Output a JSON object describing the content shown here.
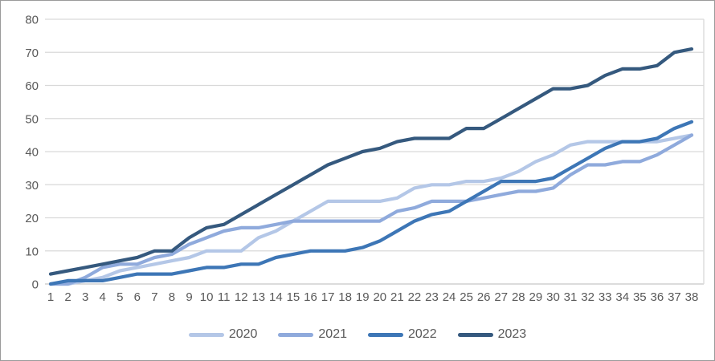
{
  "chart_data": {
    "type": "line",
    "title": "",
    "xlabel": "",
    "ylabel": "",
    "x": [
      1,
      2,
      3,
      4,
      5,
      6,
      7,
      8,
      9,
      10,
      11,
      12,
      13,
      14,
      15,
      16,
      17,
      18,
      19,
      20,
      21,
      22,
      23,
      24,
      25,
      26,
      27,
      28,
      29,
      30,
      31,
      32,
      33,
      34,
      35,
      36,
      37,
      38
    ],
    "series": [
      {
        "name": "2020",
        "color": "#b4c7e7",
        "values": [
          0,
          0,
          1,
          2,
          4,
          5,
          6,
          7,
          8,
          10,
          10,
          10,
          14,
          16,
          19,
          22,
          25,
          25,
          25,
          25,
          26,
          29,
          30,
          30,
          31,
          31,
          32,
          34,
          37,
          39,
          42,
          43,
          43,
          43,
          43,
          43,
          44,
          45
        ]
      },
      {
        "name": "2021",
        "color": "#8faadc",
        "values": [
          0,
          0,
          2,
          5,
          6,
          6,
          8,
          9,
          12,
          14,
          16,
          17,
          17,
          18,
          19,
          19,
          19,
          19,
          19,
          19,
          22,
          23,
          25,
          25,
          25,
          26,
          27,
          28,
          28,
          29,
          33,
          36,
          36,
          37,
          37,
          39,
          42,
          45
        ]
      },
      {
        "name": "2022",
        "color": "#3d76b6",
        "values": [
          0,
          1,
          1,
          1,
          2,
          3,
          3,
          3,
          4,
          5,
          5,
          6,
          6,
          8,
          9,
          10,
          10,
          10,
          11,
          13,
          16,
          19,
          21,
          22,
          25,
          28,
          31,
          31,
          31,
          32,
          35,
          38,
          41,
          43,
          43,
          44,
          47,
          49
        ]
      },
      {
        "name": "2023",
        "color": "#35597e",
        "values": [
          3,
          4,
          5,
          6,
          7,
          8,
          10,
          10,
          14,
          17,
          18,
          21,
          24,
          27,
          30,
          33,
          36,
          38,
          40,
          41,
          43,
          44,
          44,
          44,
          47,
          47,
          50,
          53,
          56,
          59,
          59,
          60,
          63,
          65,
          65,
          66,
          70,
          71
        ]
      }
    ],
    "ylim": [
      0,
      80
    ],
    "yticks": [
      0,
      10,
      20,
      30,
      40,
      50,
      60,
      70,
      80
    ],
    "grid": true,
    "legend_position": "bottom",
    "colors": {
      "gridline": "#d9d9d9",
      "axis_line": "#c6c6c6",
      "tick_label": "#595959"
    }
  }
}
